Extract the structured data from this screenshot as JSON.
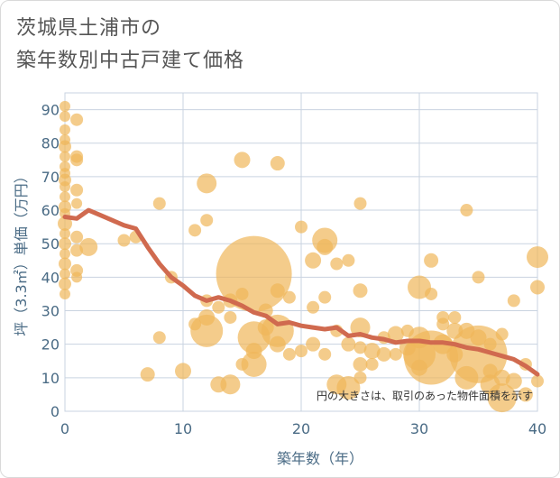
{
  "title_line1": "茨城県土浦市の",
  "title_line2": "築年数別中古戸建て価格",
  "chart_data": {
    "type": "scatter",
    "xlabel": "築年数（年）",
    "ylabel": "坪（3.3㎡）単価（万円）",
    "xlim": [
      0,
      40
    ],
    "ylim": [
      0,
      95
    ],
    "x_ticks": [
      0,
      10,
      20,
      30,
      40
    ],
    "y_ticks": [
      0,
      10,
      20,
      30,
      40,
      50,
      60,
      70,
      80,
      90
    ],
    "grid": true,
    "annotation": "円の大きさは、取引のあった物件面積を示す",
    "colors": {
      "bubble": "#f0b65a",
      "line": "#d06a4f",
      "grid": "#c9d3e0",
      "axis_text": "#4a6b85",
      "title": "#555555"
    },
    "trend_line": {
      "x": [
        0,
        1,
        2,
        3,
        4,
        5,
        6,
        7,
        8,
        9,
        10,
        11,
        12,
        13,
        14,
        15,
        16,
        17,
        18,
        19,
        20,
        21,
        22,
        23,
        24,
        25,
        26,
        27,
        28,
        29,
        30,
        31,
        32,
        33,
        34,
        35,
        36,
        37,
        38,
        39,
        40
      ],
      "y": [
        58,
        57.5,
        60,
        58.5,
        57,
        55.5,
        54.5,
        49,
        44,
        40,
        37.5,
        34.5,
        33,
        34,
        33,
        31.5,
        29.5,
        28.5,
        26,
        26.5,
        25.5,
        25,
        24.5,
        25,
        22.5,
        23,
        22,
        21.5,
        20.5,
        21,
        21,
        20.5,
        20.5,
        20,
        19,
        18.5,
        17.5,
        16.5,
        15.5,
        13.5,
        11
      ]
    },
    "points": [
      {
        "x": 0,
        "y": 91,
        "s": 6
      },
      {
        "x": 0,
        "y": 88,
        "s": 6
      },
      {
        "x": 0,
        "y": 84,
        "s": 6
      },
      {
        "x": 0,
        "y": 81,
        "s": 6
      },
      {
        "x": 0,
        "y": 79,
        "s": 7
      },
      {
        "x": 0,
        "y": 76,
        "s": 6
      },
      {
        "x": 0,
        "y": 73,
        "s": 6
      },
      {
        "x": 0,
        "y": 71,
        "s": 6
      },
      {
        "x": 0,
        "y": 69,
        "s": 7
      },
      {
        "x": 0,
        "y": 67,
        "s": 6
      },
      {
        "x": 0,
        "y": 64,
        "s": 6
      },
      {
        "x": 0,
        "y": 61,
        "s": 7
      },
      {
        "x": 0,
        "y": 59,
        "s": 6
      },
      {
        "x": 0,
        "y": 56,
        "s": 8
      },
      {
        "x": 0,
        "y": 53,
        "s": 6
      },
      {
        "x": 0,
        "y": 50,
        "s": 7
      },
      {
        "x": 0,
        "y": 47,
        "s": 6
      },
      {
        "x": 0,
        "y": 44,
        "s": 7
      },
      {
        "x": 0,
        "y": 41,
        "s": 6
      },
      {
        "x": 0,
        "y": 38,
        "s": 7
      },
      {
        "x": 0,
        "y": 35,
        "s": 6
      },
      {
        "x": 1,
        "y": 87,
        "s": 7
      },
      {
        "x": 1,
        "y": 76,
        "s": 7
      },
      {
        "x": 1,
        "y": 75,
        "s": 7
      },
      {
        "x": 1,
        "y": 66,
        "s": 7
      },
      {
        "x": 1,
        "y": 62,
        "s": 6
      },
      {
        "x": 1,
        "y": 52,
        "s": 7
      },
      {
        "x": 1,
        "y": 48,
        "s": 7
      },
      {
        "x": 1,
        "y": 42,
        "s": 7
      },
      {
        "x": 1,
        "y": 40,
        "s": 6
      },
      {
        "x": 2,
        "y": 49,
        "s": 10
      },
      {
        "x": 5,
        "y": 51,
        "s": 7
      },
      {
        "x": 6,
        "y": 52,
        "s": 7
      },
      {
        "x": 7,
        "y": 11,
        "s": 8
      },
      {
        "x": 8,
        "y": 62,
        "s": 7
      },
      {
        "x": 8,
        "y": 22,
        "s": 7
      },
      {
        "x": 9,
        "y": 40,
        "s": 7
      },
      {
        "x": 10,
        "y": 12,
        "s": 9
      },
      {
        "x": 11,
        "y": 54,
        "s": 7
      },
      {
        "x": 11,
        "y": 26,
        "s": 7
      },
      {
        "x": 12,
        "y": 68,
        "s": 11
      },
      {
        "x": 12,
        "y": 57,
        "s": 7
      },
      {
        "x": 12,
        "y": 33,
        "s": 7
      },
      {
        "x": 12,
        "y": 28,
        "s": 9
      },
      {
        "x": 12,
        "y": 24,
        "s": 18
      },
      {
        "x": 13,
        "y": 31,
        "s": 7
      },
      {
        "x": 13,
        "y": 8,
        "s": 9
      },
      {
        "x": 14,
        "y": 8,
        "s": 11
      },
      {
        "x": 14,
        "y": 33,
        "s": 8
      },
      {
        "x": 14,
        "y": 28,
        "s": 7
      },
      {
        "x": 15,
        "y": 75,
        "s": 9
      },
      {
        "x": 15,
        "y": 35,
        "s": 7
      },
      {
        "x": 15,
        "y": 14,
        "s": 7
      },
      {
        "x": 16,
        "y": 41,
        "s": 42
      },
      {
        "x": 16,
        "y": 22,
        "s": 18
      },
      {
        "x": 16,
        "y": 14,
        "s": 14
      },
      {
        "x": 16,
        "y": 18,
        "s": 9
      },
      {
        "x": 17,
        "y": 30,
        "s": 8
      },
      {
        "x": 17,
        "y": 25,
        "s": 9
      },
      {
        "x": 18,
        "y": 74,
        "s": 8
      },
      {
        "x": 18,
        "y": 36,
        "s": 8
      },
      {
        "x": 18,
        "y": 24,
        "s": 18
      },
      {
        "x": 18,
        "y": 20,
        "s": 9
      },
      {
        "x": 19,
        "y": 34,
        "s": 7
      },
      {
        "x": 19,
        "y": 17,
        "s": 7
      },
      {
        "x": 20,
        "y": 55,
        "s": 7
      },
      {
        "x": 20,
        "y": 18,
        "s": 7
      },
      {
        "x": 21,
        "y": 45,
        "s": 9
      },
      {
        "x": 21,
        "y": 31,
        "s": 7
      },
      {
        "x": 21,
        "y": 20,
        "s": 8
      },
      {
        "x": 22,
        "y": 51,
        "s": 14
      },
      {
        "x": 22,
        "y": 49,
        "s": 9
      },
      {
        "x": 22,
        "y": 34,
        "s": 7
      },
      {
        "x": 22,
        "y": 17,
        "s": 7
      },
      {
        "x": 23,
        "y": 44,
        "s": 7
      },
      {
        "x": 23,
        "y": 24,
        "s": 7
      },
      {
        "x": 23,
        "y": 8,
        "s": 11
      },
      {
        "x": 24,
        "y": 45,
        "s": 7
      },
      {
        "x": 24,
        "y": 20,
        "s": 8
      },
      {
        "x": 24,
        "y": 7,
        "s": 13
      },
      {
        "x": 25,
        "y": 62,
        "s": 7
      },
      {
        "x": 25,
        "y": 36,
        "s": 8
      },
      {
        "x": 25,
        "y": 25,
        "s": 11
      },
      {
        "x": 25,
        "y": 19,
        "s": 7
      },
      {
        "x": 25,
        "y": 14,
        "s": 8
      },
      {
        "x": 25,
        "y": 10,
        "s": 7
      },
      {
        "x": 26,
        "y": 18,
        "s": 9
      },
      {
        "x": 26,
        "y": 14,
        "s": 7
      },
      {
        "x": 27,
        "y": 22,
        "s": 7
      },
      {
        "x": 27,
        "y": 17,
        "s": 8
      },
      {
        "x": 28,
        "y": 23,
        "s": 9
      },
      {
        "x": 28,
        "y": 17,
        "s": 7
      },
      {
        "x": 29,
        "y": 24,
        "s": 7
      },
      {
        "x": 29,
        "y": 19,
        "s": 9
      },
      {
        "x": 30,
        "y": 37,
        "s": 13
      },
      {
        "x": 30,
        "y": 22,
        "s": 12
      },
      {
        "x": 30,
        "y": 17,
        "s": 18
      },
      {
        "x": 30,
        "y": 13,
        "s": 9
      },
      {
        "x": 31,
        "y": 45,
        "s": 8
      },
      {
        "x": 31,
        "y": 35,
        "s": 7
      },
      {
        "x": 31,
        "y": 16,
        "s": 30
      },
      {
        "x": 32,
        "y": 26,
        "s": 7
      },
      {
        "x": 32,
        "y": 28,
        "s": 7
      },
      {
        "x": 32,
        "y": 20,
        "s": 11
      },
      {
        "x": 33,
        "y": 24,
        "s": 9
      },
      {
        "x": 33,
        "y": 17,
        "s": 9
      },
      {
        "x": 33,
        "y": 28,
        "s": 7
      },
      {
        "x": 34,
        "y": 60,
        "s": 7
      },
      {
        "x": 34,
        "y": 24,
        "s": 9
      },
      {
        "x": 34,
        "y": 10,
        "s": 13
      },
      {
        "x": 35,
        "y": 40,
        "s": 7
      },
      {
        "x": 35,
        "y": 17,
        "s": 32
      },
      {
        "x": 35,
        "y": 22,
        "s": 9
      },
      {
        "x": 36,
        "y": 12,
        "s": 8
      },
      {
        "x": 36,
        "y": 20,
        "s": 7
      },
      {
        "x": 36,
        "y": 8,
        "s": 11
      },
      {
        "x": 37,
        "y": 4,
        "s": 16
      },
      {
        "x": 37,
        "y": 10,
        "s": 9
      },
      {
        "x": 37,
        "y": 23,
        "s": 7
      },
      {
        "x": 38,
        "y": 33,
        "s": 7
      },
      {
        "x": 38,
        "y": 9,
        "s": 9
      },
      {
        "x": 39,
        "y": 14,
        "s": 7
      },
      {
        "x": 39,
        "y": 5,
        "s": 8
      },
      {
        "x": 40,
        "y": 46,
        "s": 12
      },
      {
        "x": 40,
        "y": 37,
        "s": 8
      },
      {
        "x": 40,
        "y": 9,
        "s": 7
      }
    ]
  }
}
